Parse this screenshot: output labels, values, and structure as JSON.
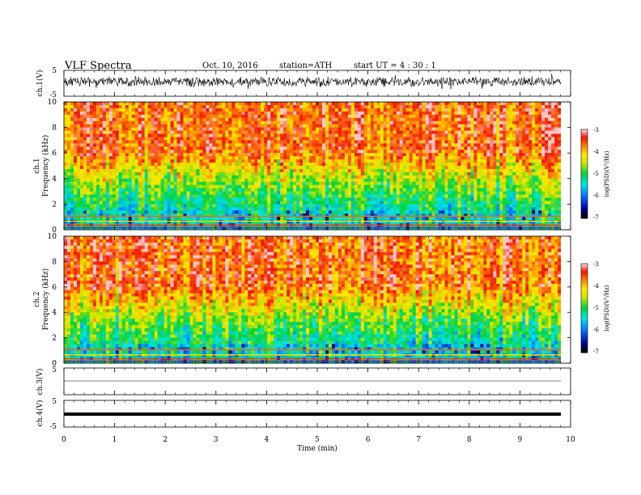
{
  "header": {
    "title": "VLF  Spectra",
    "date": "Oct. 10, 2016",
    "station": "station=ATH",
    "start": "start  UT  =   4  : 30 : 1"
  },
  "chart_data": [
    {
      "type": "line",
      "name": "ch1-waveform",
      "ylabel": "ch.1(V)",
      "ylim": [
        -5,
        5
      ],
      "yticks": [
        "5",
        "-5"
      ],
      "xlim": [
        0,
        10
      ],
      "description_level": 0.8
    },
    {
      "type": "heatmap",
      "name": "ch1-spectrogram",
      "ylabel": "ch.1\nFrequency (kHz)",
      "ylabel_channel": "ch.1",
      "ylabel_freq": "Frequency  (kHz)",
      "ylim": [
        0,
        10
      ],
      "yticks": [
        "0",
        "2",
        "4",
        "6",
        "8",
        "10"
      ],
      "xlim": [
        0,
        10
      ],
      "colorbar": {
        "label": "log(PSD)(V²/Hz)",
        "range": [
          -7,
          -3
        ],
        "ticks": [
          "-3",
          "-4",
          "-5",
          "-6",
          "-7"
        ]
      }
    },
    {
      "type": "heatmap",
      "name": "ch2-spectrogram",
      "ylabel_channel": "ch.2",
      "ylabel_freq": "Frequency  (kHz)",
      "ylim": [
        0,
        10
      ],
      "yticks": [
        "0",
        "2",
        "4",
        "6",
        "8",
        "10"
      ],
      "xlim": [
        0,
        10
      ],
      "colorbar": {
        "label": "log(PSD)(V²/Hz)",
        "range": [
          -7,
          -3
        ],
        "ticks": [
          "-3",
          "-4",
          "-5",
          "-6",
          "-7"
        ]
      }
    },
    {
      "type": "line",
      "name": "ch3-waveform",
      "ylabel": "ch.3(V)",
      "ylim": [
        -5,
        5
      ],
      "yticks": [
        "5"
      ],
      "level": 0
    },
    {
      "type": "line",
      "name": "ch4-waveform",
      "ylabel": "ch.4(V)",
      "ylim": [
        -5,
        5
      ],
      "yticks": [
        "5",
        "-5"
      ],
      "level": 0
    }
  ],
  "xaxis": {
    "label": "Time  (min)",
    "ticks": [
      "0",
      "1",
      "2",
      "3",
      "4",
      "5",
      "6",
      "7",
      "8",
      "9",
      "10"
    ],
    "xlim": [
      0,
      10
    ]
  }
}
